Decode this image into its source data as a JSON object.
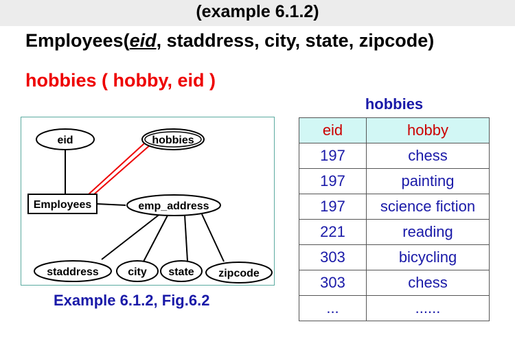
{
  "title": "(example 6.1.2)",
  "schema": {
    "employees_prefix": "Employees(",
    "employees_key": "eid",
    "employees_rest": ", staddress, city, state, zipcode)",
    "hobbies_line": "hobbies ( hobby, eid )"
  },
  "diagram": {
    "entity": "Employees",
    "attributes": {
      "eid": "eid",
      "hobbies": "hobbies",
      "emp_address": "emp_address",
      "staddress": "staddress",
      "city": "city",
      "state": "state",
      "zipcode": "zipcode"
    },
    "colors": {
      "multivalued_link": "#ee0000",
      "border": "#5aaaa0"
    }
  },
  "caption": "Example 6.1.2,  Fig.6.2",
  "table": {
    "title": "hobbies",
    "headers": [
      "eid",
      "hobby"
    ],
    "rows": [
      [
        "197",
        "chess"
      ],
      [
        "197",
        "painting"
      ],
      [
        "197",
        "science fiction"
      ],
      [
        "221",
        "reading"
      ],
      [
        "303",
        "bicycling"
      ],
      [
        "303",
        "chess"
      ],
      [
        "...",
        "......"
      ]
    ],
    "colors": {
      "header_bg": "#d2f7f5",
      "header_text": "#cc0000",
      "cell_text": "#1a1aa8"
    }
  }
}
